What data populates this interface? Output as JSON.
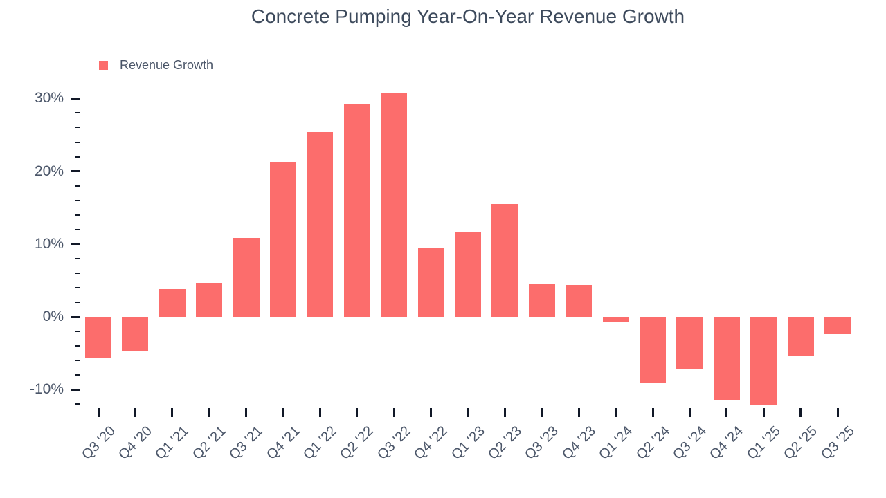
{
  "colors": {
    "bar": "#FC6D6C",
    "title_text": "#3D4A5C",
    "axis_text": "#4A5568",
    "tick_marks": "#111827",
    "background": "#FFFFFF"
  },
  "chart_data": {
    "type": "bar",
    "title": "Concrete Pumping Year-On-Year Revenue Growth",
    "legend_label": "Revenue Growth",
    "legend_position": "top-left",
    "unit": "%",
    "grid": false,
    "categories": [
      "Q3 '20",
      "Q4 '20",
      "Q1 '21",
      "Q2 '21",
      "Q3 '21",
      "Q4 '21",
      "Q1 '22",
      "Q2 '22",
      "Q3 '22",
      "Q4 '22",
      "Q1 '23",
      "Q2 '23",
      "Q3 '23",
      "Q4 '23",
      "Q1 '24",
      "Q2 '24",
      "Q3 '24",
      "Q4 '24",
      "Q1 '25",
      "Q2 '25",
      "Q3 '25"
    ],
    "series": [
      {
        "name": "Revenue Growth",
        "values": [
          -5.6,
          -4.7,
          3.8,
          4.7,
          10.8,
          21.3,
          25.4,
          29.2,
          30.8,
          9.5,
          11.7,
          15.5,
          4.6,
          4.4,
          -0.7,
          -9.1,
          -7.2,
          -11.5,
          -12.1,
          -5.4,
          -2.4
        ]
      }
    ],
    "ylim": [
      -12.5,
      32
    ],
    "y_major_ticks": [
      30,
      20,
      10,
      0,
      -10
    ],
    "y_tick_labels": [
      "30%",
      "20%",
      "10%",
      "0%",
      "-10%"
    ],
    "y_minor_tick_step": 2,
    "y_minor_tick_range": [
      -12,
      28
    ],
    "xlabel": "",
    "ylabel": ""
  }
}
